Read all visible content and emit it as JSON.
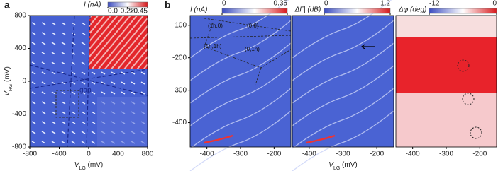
{
  "chart_data": [
    {
      "type": "heatmap",
      "panel_label": "a",
      "xlim": [
        -800,
        800
      ],
      "ylim": [
        -800,
        800
      ],
      "xticks": [
        -800,
        -400,
        0,
        400,
        800
      ],
      "yticks": [
        -800,
        -400,
        0,
        400,
        800
      ],
      "xlabel": {
        "main": "V",
        "sub": "LG",
        "unit": " (mV)"
      },
      "ylabel": {
        "main": "V",
        "sub": "RG",
        "unit": " (mV)"
      },
      "colorbar": {
        "label": "I (nA)",
        "clim": [
          0,
          0.45
        ],
        "ticks": [
          {
            "value": 0,
            "label": "0.0"
          },
          0.22,
          {
            "value": 0.45,
            "label": ">0.45"
          }
        ],
        "colors": [
          "#3b4cc0",
          "#ffffff",
          "#d7191c"
        ]
      },
      "annotations": [
        "gap"
      ]
    },
    {
      "type": "heatmap",
      "panel_label": "b",
      "xlim": [
        -450,
        -150
      ],
      "ylim": [
        -475,
        -70
      ],
      "xticks": [
        -400,
        -300,
        -200
      ],
      "yticks": [
        -100,
        -200,
        -300,
        -400
      ],
      "colorbar": {
        "label": "I (nA)",
        "clim": [
          0,
          0.35
        ],
        "ticks": [
          0,
          0.35
        ],
        "colors": [
          "#3b4cc0",
          "#ffffff",
          "#d7191c"
        ]
      },
      "annotations": [
        "(1h,0)",
        "(0,0)",
        "(1h,1h)",
        "(0,1h)"
      ]
    },
    {
      "type": "heatmap",
      "xlim": [
        -450,
        -150
      ],
      "ylim": [
        -475,
        -70
      ],
      "xticks": [
        -400,
        -300,
        -200
      ],
      "xlabel": {
        "main": "V",
        "sub": "LG",
        "unit": " (mV)"
      },
      "colorbar": {
        "label": "|ΔΓ| (dB)",
        "clim": [
          0,
          1.2
        ],
        "ticks": [
          0,
          1.2
        ],
        "colors": [
          "#3b4cc0",
          "#ffffff",
          "#d7191c"
        ]
      }
    },
    {
      "type": "heatmap",
      "xlim": [
        -450,
        -150
      ],
      "ylim": [
        -475,
        -70
      ],
      "xticks": [
        -400,
        -300,
        -200
      ],
      "colorbar": {
        "label": "Δφ (deg)",
        "clim": [
          -12,
          0
        ],
        "ticks": [
          -12,
          0
        ],
        "colors": [
          "#3b4cc0",
          "#ffffff",
          "#d7191c"
        ]
      }
    }
  ]
}
